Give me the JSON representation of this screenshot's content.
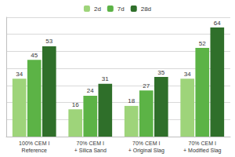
{
  "chart_data": {
    "type": "bar",
    "categories": [
      "100% CEM I\nReference",
      "70% CEM I\n+ Silica Sand",
      "70% CEM I\n+ Original Slag",
      "70% CEM I\n+ Modified Slag"
    ],
    "series": [
      {
        "name": "2d",
        "color": "#9ed47a",
        "values": [
          34,
          16,
          18,
          34
        ]
      },
      {
        "name": "7d",
        "color": "#5cb346",
        "values": [
          45,
          24,
          27,
          52
        ]
      },
      {
        "name": "28d",
        "color": "#2f6f2a",
        "values": [
          53,
          31,
          35,
          64
        ]
      }
    ],
    "ylim": [
      0,
      70
    ],
    "yticks": [
      0,
      10,
      20,
      30,
      40,
      50,
      60,
      70
    ],
    "grid": true,
    "legend": "top",
    "data_labels": true,
    "tick_labels": "x"
  }
}
